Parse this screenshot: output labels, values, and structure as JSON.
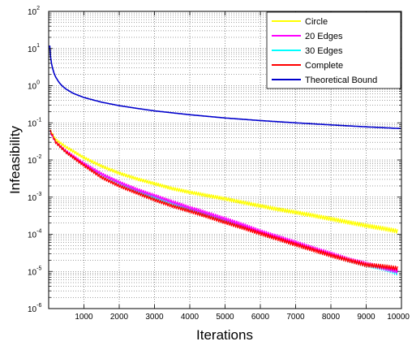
{
  "chart_data": {
    "type": "line",
    "title": "",
    "xlabel": "Iterations",
    "ylabel": "Infeasibility",
    "xlim": [
      0,
      10000
    ],
    "ylim": [
      1e-06,
      100
    ],
    "y_scale": "log",
    "grid": true,
    "legend_position": "top-right",
    "x_ticks": [
      1000,
      2000,
      3000,
      4000,
      5000,
      6000,
      7000,
      8000,
      9000,
      10000
    ],
    "x_tick_labels": [
      "1000",
      "2000",
      "3000",
      "4000",
      "5000",
      "6000",
      "7000",
      "8000",
      "9000",
      "10000"
    ],
    "y_ticks": [
      {
        "value": 1e-06,
        "base": "10",
        "exp": "-6"
      },
      {
        "value": 1e-05,
        "base": "10",
        "exp": "-5"
      },
      {
        "value": 0.0001,
        "base": "10",
        "exp": "-4"
      },
      {
        "value": 0.001,
        "base": "10",
        "exp": "-3"
      },
      {
        "value": 0.01,
        "base": "10",
        "exp": "-2"
      },
      {
        "value": 0.1,
        "base": "10",
        "exp": "-1"
      },
      {
        "value": 1,
        "base": "10",
        "exp": "0"
      },
      {
        "value": 10,
        "base": "10",
        "exp": "1"
      },
      {
        "value": 100,
        "base": "10",
        "exp": "2"
      }
    ],
    "series": [
      {
        "name": "Circle",
        "color": "#ffff00",
        "x": [
          50,
          200,
          500,
          1000,
          1500,
          2000,
          2500,
          3000,
          3500,
          4000,
          4500,
          5000,
          5500,
          6000,
          6500,
          7000,
          7500,
          8000,
          8500,
          9000,
          9500,
          9900
        ],
        "y": [
          0.06,
          0.035,
          0.022,
          0.0115,
          0.0068,
          0.0044,
          0.0031,
          0.0023,
          0.0017,
          0.00135,
          0.0011,
          0.0009,
          0.00072,
          0.00058,
          0.00047,
          0.00039,
          0.00032,
          0.00026,
          0.00021,
          0.00017,
          0.000142,
          0.00012
        ]
      },
      {
        "name": "20 Edges",
        "color": "#ff00ff",
        "x": [
          50,
          200,
          500,
          1000,
          1500,
          2000,
          2500,
          3000,
          3500,
          4000,
          4500,
          5000,
          5500,
          6000,
          6500,
          7000,
          7500,
          8000,
          8500,
          9000,
          9500,
          9900
        ],
        "y": [
          0.055,
          0.03,
          0.017,
          0.008,
          0.0042,
          0.0025,
          0.0016,
          0.0011,
          0.00075,
          0.00052,
          0.00037,
          0.00026,
          0.00018,
          0.00012,
          8.5e-05,
          6e-05,
          4.2e-05,
          3e-05,
          2.1e-05,
          1.6e-05,
          1.25e-05,
          1e-05
        ]
      },
      {
        "name": "30 Edges",
        "color": "#00ffff",
        "x": [
          50,
          200,
          500,
          1000,
          1500,
          2000,
          2500,
          3000,
          3500,
          4000,
          4500,
          5000,
          5500,
          6000,
          6500,
          7000,
          7500,
          8000,
          8500,
          9000,
          9500,
          9900
        ],
        "y": [
          0.055,
          0.03,
          0.016,
          0.0075,
          0.0041,
          0.0024,
          0.0015,
          0.001,
          0.0007,
          0.00048,
          0.00034,
          0.00024,
          0.000165,
          0.000115,
          8e-05,
          5.6e-05,
          4e-05,
          2.8e-05,
          2e-05,
          1.5e-05,
          1.2e-05,
          9e-06
        ]
      },
      {
        "name": "Complete",
        "color": "#ff0000",
        "x": [
          50,
          200,
          500,
          1000,
          1500,
          2000,
          2500,
          3000,
          3500,
          4000,
          4500,
          5000,
          5500,
          6000,
          6500,
          7000,
          7500,
          8000,
          8500,
          9000,
          9500,
          9900
        ],
        "y": [
          0.06,
          0.03,
          0.016,
          0.0072,
          0.0034,
          0.002,
          0.0013,
          0.00085,
          0.00058,
          0.00042,
          0.0003,
          0.00021,
          0.00015,
          0.000105,
          7.5e-05,
          5.3e-05,
          3.8e-05,
          2.7e-05,
          2e-05,
          1.5e-05,
          1.35e-05,
          1.2e-05
        ]
      },
      {
        "name": "Theoretical Bound",
        "color": "#0000cc",
        "x": [
          30,
          60,
          100,
          150,
          200,
          300,
          400,
          500,
          700,
          1000,
          1500,
          2000,
          2500,
          3000,
          4000,
          5000,
          6000,
          7000,
          8000,
          9000,
          10000
        ],
        "y": [
          12,
          5,
          3.2,
          2.2,
          1.7,
          1.2,
          0.95,
          0.8,
          0.62,
          0.48,
          0.36,
          0.29,
          0.245,
          0.21,
          0.165,
          0.135,
          0.115,
          0.1,
          0.088,
          0.078,
          0.07
        ]
      }
    ]
  }
}
